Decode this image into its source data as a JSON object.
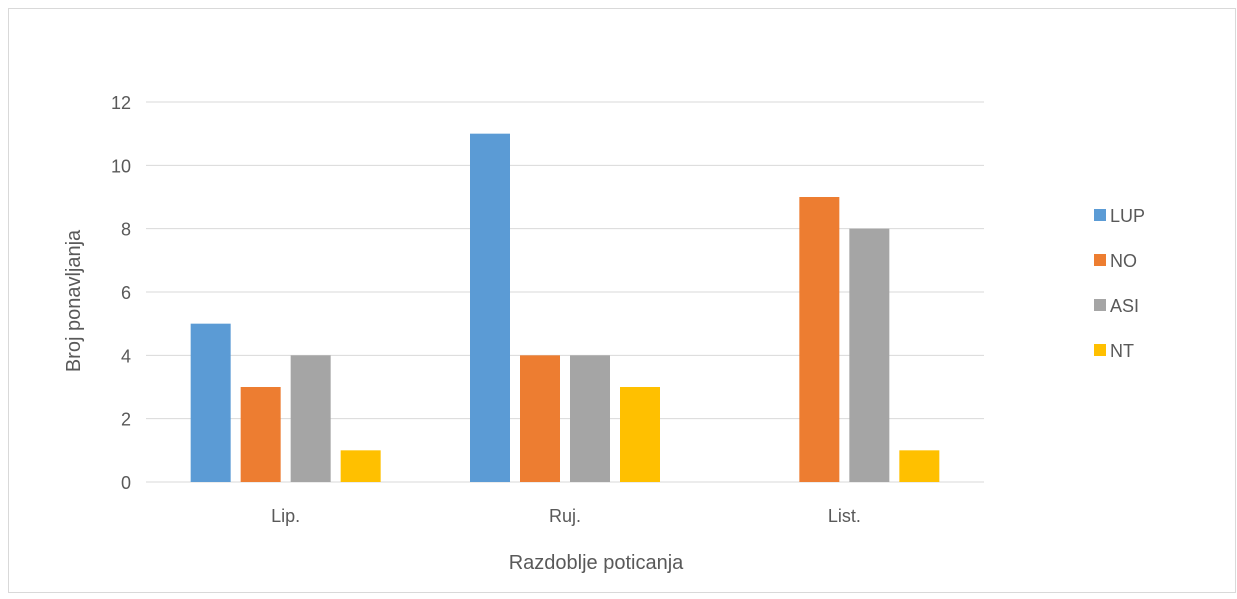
{
  "chart_data": {
    "type": "bar",
    "title": "",
    "xlabel": "Razdoblje poticanja",
    "ylabel": "Broj ponavljanja",
    "categories": [
      "Lip.",
      "Ruj.",
      "List."
    ],
    "series": [
      {
        "name": "LUP",
        "values": [
          5,
          11,
          0
        ],
        "color": "#5b9bd5"
      },
      {
        "name": "NO",
        "values": [
          3,
          4,
          9
        ],
        "color": "#ed7d31"
      },
      {
        "name": "ASI",
        "values": [
          4,
          4,
          8
        ],
        "color": "#a5a5a5"
      },
      {
        "name": "NT",
        "values": [
          1,
          3,
          1
        ],
        "color": "#ffc000"
      }
    ],
    "ylim": [
      0,
      12
    ],
    "yticks": [
      "0",
      "2",
      "4",
      "6",
      "8",
      "10",
      "12"
    ],
    "grid": true,
    "legend_position": "right"
  }
}
